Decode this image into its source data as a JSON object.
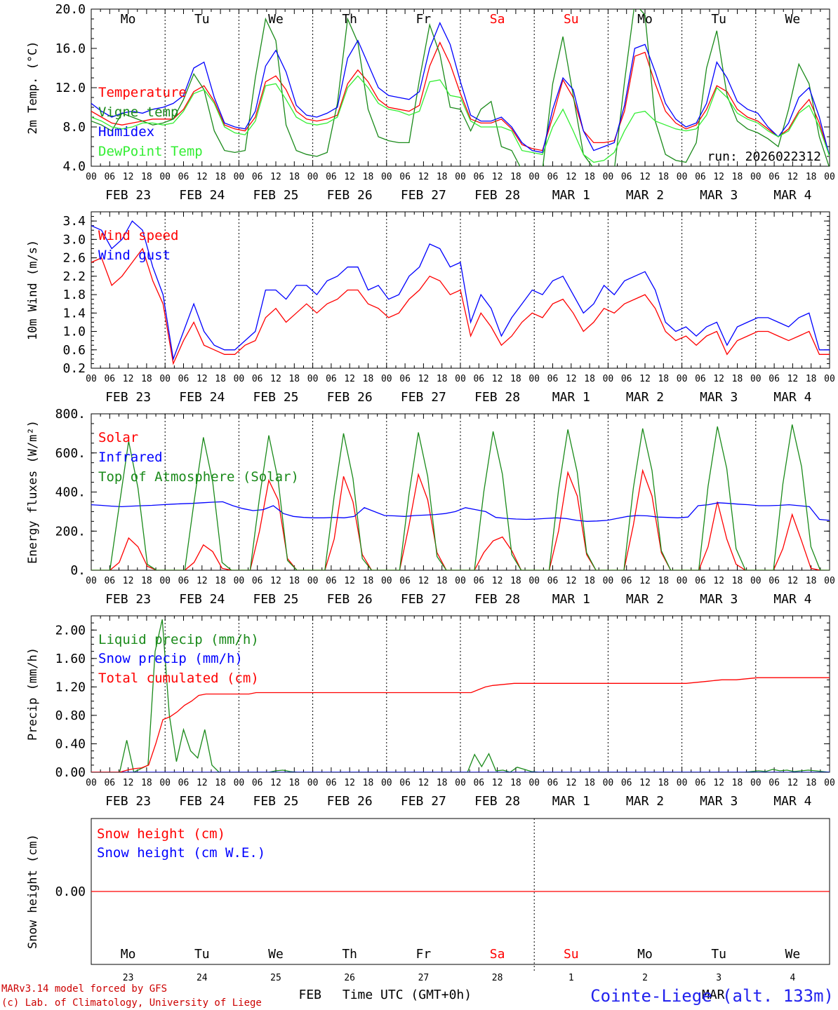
{
  "colors": {
    "red": "#ff0000",
    "blue": "#0000ff",
    "green": "#1a8a1a",
    "lightgreen": "#33ee33",
    "black": "#000000"
  },
  "days": [
    "Mo",
    "Tu",
    "We",
    "Th",
    "Fr",
    "Sa",
    "Su",
    "Mo",
    "Tu",
    "We"
  ],
  "weekend_days": [
    "Sa",
    "Su"
  ],
  "date_labels": [
    "FEB 23",
    "FEB 24",
    "FEB 25",
    "FEB 26",
    "FEB 27",
    "FEB 28",
    "MAR  1",
    "MAR  2",
    "MAR  3",
    "MAR  4"
  ],
  "hour_ticks": [
    "00",
    "06",
    "12",
    "18"
  ],
  "run_label": "run: 2026022312",
  "bottom_panel": {
    "day_numbers": [
      "23",
      "24",
      "25",
      "26",
      "27",
      "28",
      "1",
      "2",
      "3",
      "4"
    ],
    "month_left": "FEB",
    "month_right": "MAR",
    "xlabel": "Time UTC (GMT+0h)"
  },
  "footer": {
    "line1": "MARv3.14 model forced by GFS",
    "line2": "(c) Lab. of Climatology, University of Liege",
    "station": "Cointe-Liege (alt. 133m)"
  },
  "chart_data": [
    {
      "type": "line",
      "id": "temp",
      "ylabel": "2m Temp. (°C)",
      "ylim": [
        4.0,
        20.0
      ],
      "yticks": [
        "4.0",
        "8.0",
        "12.0",
        "16.0",
        "20.0"
      ],
      "x_unit": "hours since FEB 23 00 UTC (3-hourly)",
      "series": [
        {
          "name": "Temperature",
          "color": "red",
          "values": [
            9.6,
            9.0,
            8.4,
            8.2,
            8.4,
            8.6,
            8.8,
            8.8,
            8.8,
            9.8,
            11.6,
            12.2,
            10.6,
            8.2,
            7.8,
            7.6,
            9.0,
            12.6,
            13.2,
            11.8,
            9.6,
            8.8,
            8.6,
            8.8,
            9.2,
            12.4,
            13.8,
            12.6,
            10.8,
            10.0,
            9.8,
            9.6,
            10.2,
            14.2,
            16.6,
            14.4,
            11.4,
            8.8,
            8.4,
            8.4,
            8.8,
            7.8,
            6.2,
            5.8,
            5.6,
            9.0,
            12.8,
            11.0,
            7.6,
            6.4,
            6.4,
            6.6,
            9.6,
            15.2,
            15.6,
            12.4,
            9.6,
            8.4,
            7.8,
            8.2,
            9.8,
            12.2,
            11.6,
            9.8,
            9.0,
            8.6,
            7.8,
            7.0,
            7.8,
            9.6,
            10.8,
            8.4,
            5.0
          ]
        },
        {
          "name": "Vigne temp",
          "color": "green",
          "values": [
            8.6,
            8.2,
            7.6,
            9.4,
            9.0,
            8.6,
            8.2,
            8.4,
            8.8,
            10.8,
            13.4,
            11.8,
            7.6,
            5.6,
            5.4,
            5.6,
            13.0,
            19.0,
            16.8,
            8.2,
            5.6,
            5.2,
            5.0,
            5.4,
            10.4,
            19.0,
            16.6,
            9.8,
            7.0,
            6.6,
            6.4,
            6.4,
            12.8,
            18.4,
            15.4,
            10.0,
            9.8,
            7.6,
            9.8,
            10.6,
            6.0,
            5.6,
            3.6,
            3.4,
            3.6,
            12.4,
            17.2,
            11.2,
            5.2,
            3.8,
            3.4,
            3.6,
            12.6,
            20.6,
            19.4,
            8.6,
            5.2,
            4.6,
            4.4,
            6.4,
            14.0,
            17.8,
            11.2,
            8.6,
            7.8,
            7.4,
            6.8,
            6.0,
            9.8,
            14.4,
            12.4,
            7.0,
            3.8
          ]
        },
        {
          "name": "Humidex",
          "color": "blue",
          "values": [
            10.4,
            9.6,
            9.0,
            9.4,
            9.6,
            9.4,
            9.8,
            10.0,
            10.4,
            11.2,
            14.0,
            14.6,
            11.0,
            8.4,
            8.0,
            7.8,
            9.6,
            14.2,
            15.8,
            13.6,
            10.2,
            9.2,
            9.0,
            9.4,
            10.0,
            15.0,
            16.8,
            14.4,
            12.0,
            11.2,
            11.0,
            10.8,
            11.6,
            16.0,
            18.6,
            16.4,
            12.6,
            9.2,
            8.6,
            8.6,
            9.0,
            8.0,
            6.4,
            5.6,
            5.4,
            9.8,
            13.0,
            11.8,
            7.6,
            5.6,
            6.0,
            6.4,
            10.2,
            16.0,
            16.4,
            13.6,
            10.4,
            8.8,
            8.0,
            8.4,
            10.4,
            14.6,
            13.0,
            10.6,
            9.8,
            9.4,
            8.0,
            7.0,
            8.4,
            11.0,
            12.0,
            9.0,
            5.0
          ]
        },
        {
          "name": "DewPoint Temp",
          "color": "lightgreen",
          "values": [
            9.0,
            8.6,
            8.0,
            7.8,
            8.0,
            8.4,
            8.4,
            8.2,
            8.4,
            9.6,
            11.4,
            11.8,
            10.4,
            8.0,
            7.4,
            7.2,
            8.6,
            12.2,
            12.4,
            10.8,
            9.0,
            8.4,
            8.2,
            8.4,
            9.0,
            12.0,
            13.2,
            12.0,
            10.4,
            9.8,
            9.6,
            9.2,
            9.6,
            12.6,
            12.8,
            11.2,
            11.0,
            8.6,
            8.0,
            8.0,
            8.0,
            7.6,
            5.6,
            5.4,
            5.2,
            8.0,
            9.8,
            7.6,
            5.2,
            4.4,
            4.6,
            5.4,
            7.6,
            9.4,
            9.6,
            8.6,
            8.2,
            7.8,
            7.6,
            7.8,
            9.2,
            12.0,
            11.0,
            9.4,
            8.8,
            8.4,
            7.6,
            7.0,
            7.6,
            9.4,
            10.2,
            8.0,
            5.0
          ]
        }
      ],
      "annotation": "run: 2026022312"
    },
    {
      "type": "line",
      "id": "wind",
      "ylabel": "10m Wind (m/s)",
      "ylim": [
        0.2,
        3.6
      ],
      "yticks": [
        "0.2",
        "0.6",
        "1.0",
        "1.4",
        "1.8",
        "2.2",
        "2.6",
        "3.0",
        "3.4"
      ],
      "series": [
        {
          "name": "Wind speed",
          "color": "red",
          "values": [
            2.5,
            2.6,
            2.0,
            2.2,
            2.5,
            2.8,
            2.1,
            1.6,
            0.3,
            0.8,
            1.2,
            0.7,
            0.6,
            0.5,
            0.5,
            0.7,
            0.8,
            1.3,
            1.5,
            1.2,
            1.4,
            1.6,
            1.4,
            1.6,
            1.7,
            1.9,
            1.9,
            1.6,
            1.5,
            1.3,
            1.4,
            1.7,
            1.9,
            2.2,
            2.1,
            1.8,
            1.9,
            0.9,
            1.4,
            1.1,
            0.7,
            0.9,
            1.2,
            1.4,
            1.3,
            1.6,
            1.7,
            1.4,
            1.0,
            1.2,
            1.5,
            1.4,
            1.6,
            1.7,
            1.8,
            1.5,
            1.0,
            0.8,
            0.9,
            0.7,
            0.9,
            1.0,
            0.5,
            0.8,
            0.9,
            1.0,
            1.0,
            0.9,
            0.8,
            0.9,
            1.0,
            0.5,
            0.5
          ]
        },
        {
          "name": "Wind gust",
          "color": "blue",
          "values": [
            3.3,
            3.2,
            2.8,
            3.0,
            3.4,
            3.2,
            2.4,
            1.8,
            0.4,
            1.0,
            1.6,
            1.0,
            0.7,
            0.6,
            0.6,
            0.8,
            1.0,
            1.9,
            1.9,
            1.7,
            2.0,
            2.0,
            1.8,
            2.1,
            2.2,
            2.4,
            2.4,
            1.9,
            2.0,
            1.7,
            1.8,
            2.2,
            2.4,
            2.9,
            2.8,
            2.4,
            2.5,
            1.2,
            1.8,
            1.5,
            0.9,
            1.3,
            1.6,
            1.9,
            1.8,
            2.1,
            2.2,
            1.8,
            1.4,
            1.6,
            2.0,
            1.8,
            2.1,
            2.2,
            2.3,
            1.9,
            1.2,
            1.0,
            1.1,
            0.9,
            1.1,
            1.2,
            0.7,
            1.1,
            1.2,
            1.3,
            1.3,
            1.2,
            1.1,
            1.3,
            1.4,
            0.6,
            0.6
          ]
        }
      ]
    },
    {
      "type": "line",
      "id": "energy",
      "ylabel": "Energy fluxes (W/m²)",
      "ylim": [
        0,
        800
      ],
      "yticks": [
        "0.",
        "200.",
        "400.",
        "600.",
        "800."
      ],
      "series": [
        {
          "name": "Solar",
          "color": "red",
          "values": [
            0,
            0,
            0,
            40,
            165,
            120,
            20,
            0,
            0,
            0,
            0,
            40,
            130,
            95,
            10,
            0,
            0,
            0,
            200,
            460,
            360,
            60,
            0,
            0,
            0,
            0,
            160,
            480,
            350,
            80,
            0,
            0,
            0,
            0,
            230,
            490,
            360,
            90,
            0,
            0,
            0,
            0,
            90,
            150,
            170,
            100,
            0,
            0,
            0,
            0,
            200,
            500,
            380,
            80,
            0,
            0,
            0,
            0,
            230,
            510,
            380,
            90,
            0,
            0,
            0,
            0,
            120,
            350,
            160,
            30,
            0,
            0,
            0,
            0,
            110,
            285,
            150,
            10,
            0,
            0
          ]
        },
        {
          "name": "Infrared",
          "color": "blue",
          "values": [
            335,
            332,
            328,
            325,
            328,
            330,
            332,
            335,
            338,
            340,
            342,
            345,
            348,
            350,
            330,
            315,
            305,
            310,
            330,
            290,
            275,
            270,
            268,
            268,
            270,
            268,
            275,
            320,
            300,
            280,
            278,
            275,
            280,
            282,
            285,
            290,
            300,
            320,
            310,
            300,
            270,
            265,
            262,
            260,
            262,
            265,
            268,
            264,
            255,
            250,
            252,
            255,
            265,
            275,
            280,
            278,
            272,
            270,
            268,
            272,
            330,
            335,
            345,
            342,
            338,
            335,
            330,
            330,
            332,
            335,
            330,
            325,
            260,
            255
          ]
        },
        {
          "name": "Top of Atmosphere (Solar)",
          "color": "green",
          "values": [
            0,
            0,
            0,
            330,
            660,
            420,
            30,
            0,
            0,
            0,
            0,
            350,
            680,
            450,
            40,
            0,
            0,
            0,
            370,
            690,
            460,
            50,
            0,
            0,
            0,
            0,
            380,
            700,
            470,
            60,
            0,
            0,
            0,
            0,
            390,
            705,
            480,
            70,
            0,
            0,
            0,
            0,
            400,
            710,
            490,
            80,
            0,
            0,
            0,
            0,
            410,
            720,
            500,
            90,
            0,
            0,
            0,
            0,
            420,
            725,
            510,
            100,
            0,
            0,
            0,
            0,
            430,
            735,
            520,
            110,
            0,
            0,
            0,
            0,
            440,
            745,
            530,
            120,
            0,
            0
          ]
        }
      ]
    },
    {
      "type": "line",
      "id": "precip",
      "ylabel": "Precip (mm/h)",
      "ylim": [
        0.0,
        2.2
      ],
      "yticks": [
        "0.00",
        "0.40",
        "0.80",
        "1.20",
        "1.60",
        "2.00"
      ],
      "series": [
        {
          "name": "Liquid precip (mm/h)",
          "color": "green",
          "values": [
            0,
            0,
            0,
            0,
            0,
            0.45,
            0,
            0.05,
            0.1,
            1.7,
            2.15,
            0.8,
            0.15,
            0.6,
            0.3,
            0.2,
            0.6,
            0.1,
            0,
            0,
            0,
            0,
            0,
            0,
            0,
            0,
            0.02,
            0.03,
            0.01,
            0,
            0,
            0,
            0,
            0,
            0,
            0,
            0,
            0,
            0,
            0,
            0,
            0,
            0,
            0,
            0,
            0,
            0,
            0,
            0,
            0,
            0,
            0,
            0,
            0,
            0.25,
            0.08,
            0.26,
            0.02,
            0.03,
            0,
            0.07,
            0.04,
            0.01,
            0,
            0,
            0,
            0,
            0,
            0,
            0,
            0,
            0,
            0,
            0,
            0,
            0,
            0,
            0,
            0,
            0,
            0,
            0,
            0,
            0,
            0,
            0,
            0,
            0,
            0,
            0,
            0,
            0,
            0,
            0.01,
            0.02,
            0.01,
            0.04,
            0.02,
            0.03,
            0.01,
            0.02,
            0.03,
            0.02,
            0.01,
            0
          ]
        },
        {
          "name": "Snow precip (mm/h)",
          "color": "blue",
          "values": [
            0,
            0
          ]
        },
        {
          "name": "Total cumulated (cm)",
          "color": "red",
          "values": [
            0,
            0,
            0,
            0,
            0,
            0.03,
            0.05,
            0.06,
            0.1,
            0.4,
            0.74,
            0.78,
            0.85,
            0.94,
            1.0,
            1.08,
            1.1,
            1.1,
            1.1,
            1.1,
            1.1,
            1.1,
            1.1,
            1.12,
            1.12,
            1.12,
            1.12,
            1.12,
            1.12,
            1.12,
            1.12,
            1.12,
            1.12,
            1.12,
            1.12,
            1.12,
            1.12,
            1.12,
            1.12,
            1.12,
            1.12,
            1.12,
            1.12,
            1.12,
            1.12,
            1.12,
            1.12,
            1.12,
            1.12,
            1.12,
            1.12,
            1.12,
            1.12,
            1.12,
            1.16,
            1.2,
            1.22,
            1.23,
            1.24,
            1.25,
            1.25,
            1.25,
            1.25,
            1.25,
            1.25,
            1.25,
            1.25,
            1.25,
            1.25,
            1.25,
            1.25,
            1.25,
            1.25,
            1.25,
            1.25,
            1.25,
            1.25,
            1.25,
            1.25,
            1.25,
            1.25,
            1.25,
            1.25,
            1.25,
            1.26,
            1.27,
            1.28,
            1.29,
            1.3,
            1.3,
            1.3,
            1.31,
            1.32,
            1.33,
            1.33,
            1.33,
            1.33,
            1.33,
            1.33,
            1.33,
            1.33,
            1.33,
            1.33,
            1.33
          ]
        }
      ]
    },
    {
      "type": "line",
      "id": "snow",
      "ylabel": "Snow height (cm)",
      "ylim": [
        -1.0,
        1.0
      ],
      "yticks": [
        "0.00"
      ],
      "series": [
        {
          "name": "Snow height (cm)",
          "color": "red",
          "values": [
            0,
            0
          ]
        },
        {
          "name": "Snow height (cm W.E.)",
          "color": "blue",
          "values": []
        }
      ]
    }
  ]
}
